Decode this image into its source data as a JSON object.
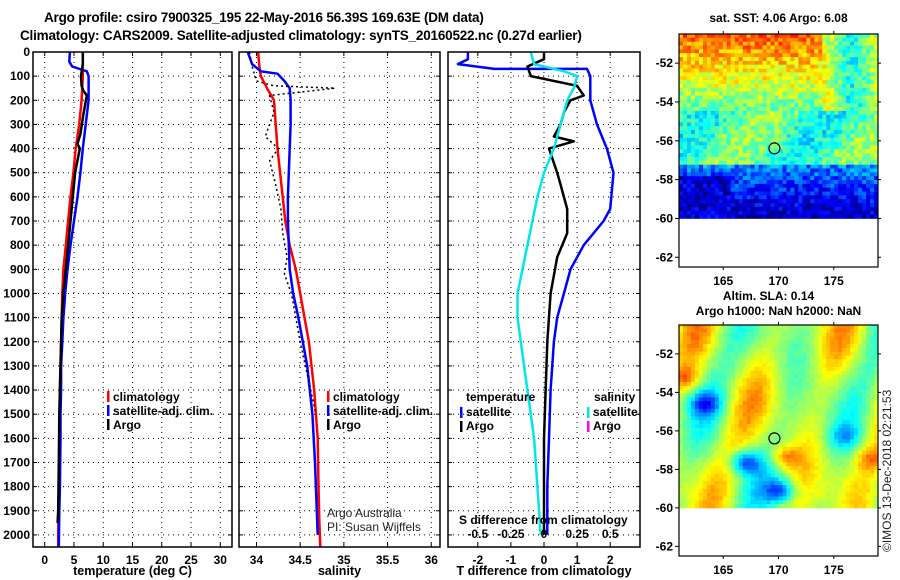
{
  "header": {
    "line1": "Argo profile: csiro 7900325_195 22-May-2016 56.39S 169.63E (DM data)",
    "line2": "Climatology: CARS2009. Satellite-adjusted climatology: synTS_20160522.nc (0.27d earlier)"
  },
  "colors": {
    "climatology": "#ff0000",
    "satellite": "#0000ff",
    "argo": "#000000",
    "salinity_satellite": "#00e5ee",
    "salinity_argo": "#ff00ff"
  },
  "chart_data": [
    {
      "type": "line",
      "name": "temperature-profile",
      "xlabel": "temperature (deg C)",
      "ylabel": "",
      "xlim": [
        -2,
        32
      ],
      "ylim": [
        2050,
        0
      ],
      "xticks": [
        0,
        5,
        10,
        15,
        20,
        25,
        30
      ],
      "yticks": [
        0,
        100,
        200,
        300,
        400,
        500,
        600,
        700,
        800,
        900,
        1000,
        1100,
        1200,
        1300,
        1400,
        1500,
        1600,
        1700,
        1800,
        1900,
        2000
      ],
      "grid": true,
      "legend": {
        "position": "middle-right",
        "entries": [
          "climatology",
          "satellite-adj. clim.",
          "Argo"
        ]
      },
      "series": [
        {
          "name": "climatology",
          "color": "#ff0000",
          "x": [
            6.5,
            6.5,
            6.3,
            5.9,
            5.3,
            4.9,
            4.4,
            4.0,
            3.6,
            3.2,
            3.0,
            2.9,
            2.8,
            2.7,
            2.6,
            2.6,
            2.5,
            2.5,
            2.4,
            2.3,
            2.3
          ],
          "y": [
            0,
            100,
            200,
            300,
            400,
            500,
            600,
            700,
            800,
            900,
            1000,
            1100,
            1200,
            1300,
            1400,
            1500,
            1600,
            1700,
            1800,
            1900,
            2050
          ]
        },
        {
          "name": "satellite-adj. clim.",
          "color": "#0000ff",
          "x": [
            4.3,
            4.2,
            4.7,
            7.2,
            7.5,
            7.5,
            7.0,
            6.5,
            6.1,
            5.6,
            5.0,
            4.4,
            3.9,
            3.5,
            3.2,
            3.0,
            2.8,
            2.8,
            2.7,
            2.7,
            2.6,
            2.5,
            2.4
          ],
          "y": [
            0,
            40,
            60,
            80,
            100,
            200,
            300,
            400,
            500,
            600,
            700,
            800,
            900,
            1000,
            1100,
            1200,
            1300,
            1400,
            1500,
            1600,
            1800,
            1900,
            2050
          ]
        },
        {
          "name": "Argo",
          "color": "#000000",
          "x": [
            6.5,
            6.5,
            6.2,
            6.3,
            6.6,
            7.2,
            6.6,
            6.1,
            5.6,
            6.0,
            5.2,
            4.8,
            4.4,
            4.0,
            3.6,
            3.2,
            2.9,
            2.7,
            2.5,
            2.4,
            2.3,
            2.2
          ],
          "y": [
            0,
            50,
            100,
            140,
            160,
            180,
            260,
            340,
            380,
            400,
            500,
            600,
            700,
            800,
            900,
            1000,
            1100,
            1300,
            1500,
            1700,
            1900,
            1950
          ]
        }
      ]
    },
    {
      "type": "line",
      "name": "salinity-profile",
      "xlabel": "salinity",
      "xlim": [
        33.8,
        36.1
      ],
      "ylim": [
        2050,
        0
      ],
      "xticks": [
        34,
        34.5,
        35,
        35.5,
        36
      ],
      "grid": true,
      "legend": {
        "position": "middle-right",
        "entries": [
          "climatology",
          "satellite-adj. clim.",
          "Argo"
        ]
      },
      "annotation": [
        "Argo Australia",
        "PI: Susan Wijffels"
      ],
      "series": [
        {
          "name": "climatology",
          "color": "#ff0000",
          "x": [
            34.02,
            34.03,
            34.05,
            34.12,
            34.2,
            34.22,
            34.24,
            34.27,
            34.3,
            34.33,
            34.38,
            34.45,
            34.5,
            34.55,
            34.6,
            34.63,
            34.66,
            34.68,
            34.7,
            34.71,
            34.72,
            34.73
          ],
          "y": [
            0,
            50,
            100,
            150,
            200,
            300,
            400,
            500,
            600,
            700,
            800,
            900,
            1000,
            1100,
            1200,
            1300,
            1400,
            1500,
            1600,
            1800,
            1950,
            2050
          ]
        },
        {
          "name": "satellite-adj. clim.",
          "color": "#0000ff",
          "x": [
            33.9,
            33.95,
            34.05,
            34.24,
            34.32,
            34.38,
            34.39,
            34.39,
            34.38,
            34.37,
            34.36,
            34.36,
            34.37,
            34.38,
            34.42,
            34.48,
            34.53,
            34.58,
            34.64,
            34.67,
            34.7
          ],
          "y": [
            0,
            50,
            80,
            90,
            120,
            150,
            200,
            300,
            400,
            500,
            600,
            700,
            800,
            900,
            1000,
            1100,
            1200,
            1300,
            1500,
            1700,
            2000
          ]
        },
        {
          "name": "Argo",
          "color": "#000000",
          "x": [
            33.92,
            33.95,
            34.0,
            34.2,
            34.9,
            34.15,
            34.2,
            34.1,
            34.25,
            34.15,
            34.22,
            34.28,
            34.3,
            34.35,
            34.32,
            34.4,
            34.45,
            34.5,
            34.56,
            34.62,
            34.68
          ],
          "y": [
            0,
            60,
            120,
            140,
            150,
            180,
            250,
            350,
            400,
            450,
            550,
            650,
            750,
            850,
            920,
            1000,
            1100,
            1200,
            1300,
            1400,
            1500
          ]
        }
      ]
    },
    {
      "type": "line",
      "name": "difference-profile",
      "xlabel": "T difference from climatology",
      "xlabel2": "S difference from climatology",
      "xlim": [
        -2.9,
        2.9
      ],
      "ylim": [
        2050,
        0
      ],
      "xticks": [
        -2,
        -1,
        0,
        1,
        2
      ],
      "xticks2": {
        "labels": [
          "-0.5",
          "-0.25",
          "0",
          "0.25",
          "0.5"
        ],
        "values": [
          -2,
          -1,
          0,
          1,
          2
        ]
      },
      "grid": true,
      "legend": {
        "position": "middle",
        "temperature_title": "temperature",
        "salinity_title": "salinity",
        "temperature_entries": [
          "satellite",
          "Argo"
        ],
        "salinity_entries": [
          "satellite",
          "Argo"
        ]
      },
      "series": [
        {
          "name": "temperature satellite",
          "color": "#0000ff",
          "x": [
            -2.3,
            -2.3,
            -2.6,
            -1.5,
            1.3,
            1.4,
            1.4,
            1.6,
            1.9,
            2.1,
            2.0,
            1.8,
            1.2,
            0.8,
            0.6,
            0.4,
            0.3,
            0.2,
            0.15,
            0.1,
            0.1
          ],
          "y": [
            0,
            30,
            50,
            70,
            70,
            100,
            200,
            300,
            400,
            500,
            650,
            700,
            800,
            900,
            1000,
            1100,
            1200,
            1400,
            1600,
            1800,
            2000
          ]
        },
        {
          "name": "temperature Argo",
          "color": "#000000",
          "x": [
            0.0,
            0.0,
            -0.5,
            -0.4,
            1.0,
            1.2,
            0.8,
            0.6,
            0.5,
            0.3,
            0.9,
            0.15,
            0.4,
            0.5,
            0.7,
            0.7,
            0.4,
            0.2,
            0.1,
            0.0,
            0.0
          ],
          "y": [
            0,
            30,
            60,
            100,
            140,
            180,
            200,
            250,
            300,
            350,
            370,
            400,
            500,
            550,
            650,
            750,
            850,
            1000,
            1200,
            1600,
            2000
          ]
        },
        {
          "name": "salinity satellite",
          "color": "#00e5ee",
          "x": [
            -0.4,
            -0.3,
            0.6,
            1.0,
            0.9,
            0.7,
            0.5,
            0.3,
            0.0,
            -0.2,
            -0.5,
            -0.8,
            -0.8,
            -0.7,
            -0.5,
            -0.3,
            -0.2,
            -0.1
          ],
          "y": [
            0,
            50,
            80,
            100,
            150,
            200,
            300,
            400,
            500,
            600,
            800,
            1000,
            1100,
            1200,
            1400,
            1600,
            1800,
            2000
          ]
        }
      ]
    }
  ],
  "maps": [
    {
      "title": "sat. SST: 4.06 Argo: 6.08",
      "xticks": [
        "165",
        "170",
        "175"
      ],
      "yticks": [
        "-52",
        "-54",
        "-56",
        "-58",
        "-60",
        "-62"
      ],
      "lon_range": [
        161,
        179
      ],
      "lat_range": [
        -62.5,
        -50.5
      ],
      "data_lat_min": -60,
      "float_position": {
        "lon": 169.63,
        "lat": -56.39
      },
      "colormap": "jet"
    },
    {
      "title_line1": "Altim. SLA: 0.14",
      "title_line2": "Argo h1000: NaN h2000: NaN",
      "xticks": [
        "165",
        "170",
        "175"
      ],
      "yticks": [
        "-52",
        "-54",
        "-56",
        "-58",
        "-60",
        "-62"
      ],
      "lon_range": [
        161,
        179
      ],
      "lat_range": [
        -62.5,
        -50.5
      ],
      "data_lat_min": -60,
      "float_position": {
        "lon": 169.63,
        "lat": -56.39
      },
      "colormap": "jet"
    }
  ],
  "credit": "©IMOS 13-Dec-2018 02:21:53"
}
